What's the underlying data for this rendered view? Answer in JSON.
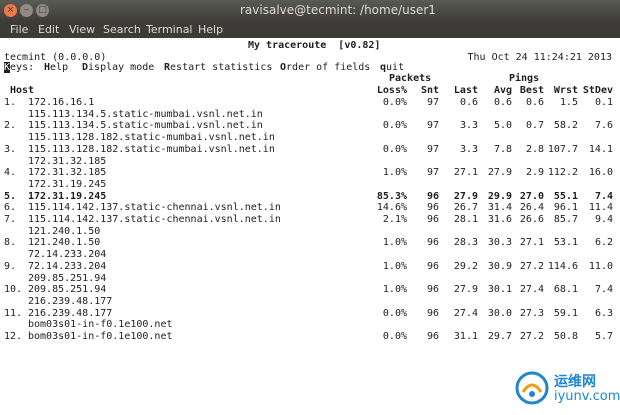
{
  "window": {
    "title": "ravisalve@tecmint: /home/user1",
    "close_glyph": "×",
    "min_glyph": "–",
    "max_glyph": "□"
  },
  "menu": [
    "File",
    "Edit",
    "View",
    "Search",
    "Terminal",
    "Help"
  ],
  "mtr": {
    "title": "My traceroute  [v0.82]",
    "hostline": "tecmint (0.0.0.0)",
    "datetime": "Thu Oct 24 11:24:21 2013",
    "keys": {
      "label_first": "K",
      "label_rest": "eys:",
      "help_key": "H",
      "help_rest": "elp",
      "display_key": "D",
      "display_rest": "isplay mode",
      "restart_key": "R",
      "restart_rest": "estart statistics",
      "order_key": "O",
      "order_rest": "rder of fields",
      "quit_key": "q",
      "quit_rest": "uit"
    },
    "groups": {
      "packets": "Packets",
      "pings": "Pings"
    },
    "columns": {
      "host": "Host",
      "loss": "Loss%",
      "snt": "Snt",
      "last": "Last",
      "avg": "Avg",
      "best": "Best",
      "wrst": "Wrst",
      "stdev": "StDev"
    },
    "hops": [
      {
        "num": "1.",
        "host": "172.16.16.1",
        "extra": [
          "115.113.134.5.static-mumbai.vsnl.net.in"
        ],
        "loss": "0.0%",
        "snt": "97",
        "last": "0.6",
        "avg": "0.6",
        "best": "0.6",
        "wrst": "1.5",
        "stdev": "0.1",
        "bold": false
      },
      {
        "num": "2.",
        "host": "115.113.134.5.static-mumbai.vsnl.net.in",
        "extra": [
          "115.113.128.182.static-mumbai.vsnl.net.in"
        ],
        "loss": "0.0%",
        "snt": "97",
        "last": "3.3",
        "avg": "5.0",
        "best": "0.7",
        "wrst": "58.2",
        "stdev": "7.6",
        "bold": false
      },
      {
        "num": "3.",
        "host": "115.113.128.182.static-mumbai.vsnl.net.in",
        "extra": [
          "172.31.32.185"
        ],
        "loss": "0.0%",
        "snt": "97",
        "last": "3.3",
        "avg": "7.8",
        "best": "2.8",
        "wrst": "107.7",
        "stdev": "14.1",
        "bold": false
      },
      {
        "num": "4.",
        "host": "172.31.32.185",
        "extra": [
          "172.31.19.245"
        ],
        "loss": "1.0%",
        "snt": "97",
        "last": "27.1",
        "avg": "27.9",
        "best": "2.9",
        "wrst": "112.2",
        "stdev": "16.0",
        "bold": false
      },
      {
        "num": "5.",
        "host": "172.31.19.245",
        "extra": [],
        "loss": "85.3%",
        "snt": "96",
        "last": "27.9",
        "avg": "29.9",
        "best": "27.0",
        "wrst": "55.1",
        "stdev": "7.4",
        "bold": true
      },
      {
        "num": "6.",
        "host": "115.114.142.137.static-chennai.vsnl.net.in",
        "extra": [],
        "loss": "14.6%",
        "snt": "96",
        "last": "26.7",
        "avg": "31.4",
        "best": "26.4",
        "wrst": "96.1",
        "stdev": "11.4",
        "bold": false
      },
      {
        "num": "7.",
        "host": "115.114.142.137.static-chennai.vsnl.net.in",
        "extra": [
          "121.240.1.50"
        ],
        "loss": "2.1%",
        "snt": "96",
        "last": "28.1",
        "avg": "31.6",
        "best": "26.6",
        "wrst": "85.7",
        "stdev": "9.4",
        "bold": false
      },
      {
        "num": "8.",
        "host": "121.240.1.50",
        "extra": [
          "72.14.233.204"
        ],
        "loss": "1.0%",
        "snt": "96",
        "last": "28.3",
        "avg": "30.3",
        "best": "27.1",
        "wrst": "53.1",
        "stdev": "6.2",
        "bold": false
      },
      {
        "num": "9.",
        "host": "72.14.233.204",
        "extra": [
          "209.85.251.94"
        ],
        "loss": "1.0%",
        "snt": "96",
        "last": "29.2",
        "avg": "30.9",
        "best": "27.2",
        "wrst": "114.6",
        "stdev": "11.0",
        "bold": false
      },
      {
        "num": "10.",
        "host": "209.85.251.94",
        "extra": [
          "216.239.48.177"
        ],
        "loss": "1.0%",
        "snt": "96",
        "last": "27.9",
        "avg": "30.1",
        "best": "27.4",
        "wrst": "68.1",
        "stdev": "7.4",
        "bold": false
      },
      {
        "num": "11.",
        "host": "216.239.48.177",
        "extra": [
          "bom03s01-in-f0.1e100.net"
        ],
        "loss": "0.0%",
        "snt": "96",
        "last": "27.4",
        "avg": "30.0",
        "best": "27.3",
        "wrst": "59.1",
        "stdev": "6.3",
        "bold": false
      },
      {
        "num": "12.",
        "host": "bom03s01-in-f0.1e100.net",
        "extra": [],
        "loss": "0.0%",
        "snt": "96",
        "last": "31.1",
        "avg": "29.7",
        "best": "27.2",
        "wrst": "50.8",
        "stdev": "5.7",
        "bold": false
      }
    ]
  },
  "watermark": {
    "cn": "运维网",
    "url": "iyunv.com"
  },
  "colors": {
    "titlebar": "#3c3b37",
    "close": "#f07746",
    "terminal_bg": "#ffffff",
    "text": "#1e1e1e",
    "watermark": "#1f86d1"
  }
}
